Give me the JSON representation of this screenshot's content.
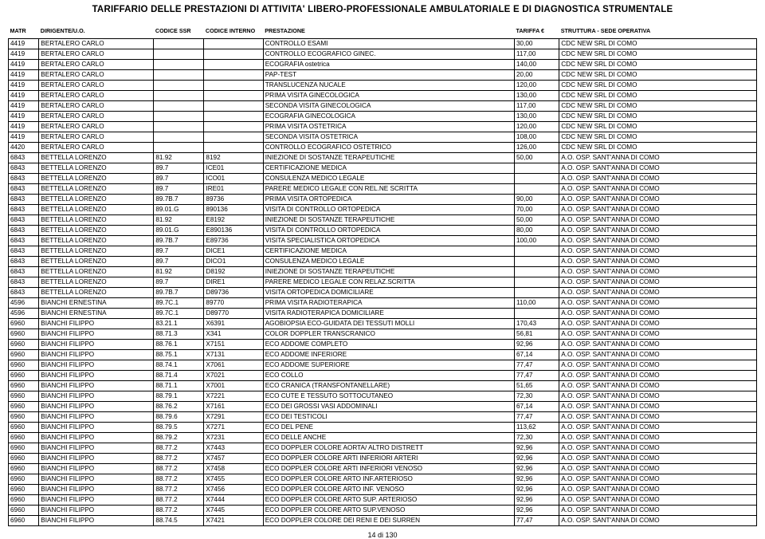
{
  "title": "TARIFFARIO DELLE PRESTAZIONI DI  ATTIVITA' LIBERO-PROFESSIONALE AMBULATORIALE E DI DIAGNOSTICA STRUMENTALE",
  "footer": "14 di 130",
  "columns": [
    "MATR",
    "DIRIGENTE/U.O.",
    "CODICE SSR",
    "CODICE INTERNO",
    "PRESTAZIONE",
    "TARIFFA €",
    "STRUTTURA - SEDE OPERATIVA"
  ],
  "rows": [
    [
      "4419",
      "BERTALERO CARLO",
      "",
      "",
      "CONTROLLO ESAMI",
      "30,00",
      "CDC NEW SRL DI COMO"
    ],
    [
      "4419",
      "BERTALERO CARLO",
      "",
      "",
      "CONTROLLO ECOGRAFICO GINEC.",
      "117,00",
      "CDC NEW SRL DI COMO"
    ],
    [
      "4419",
      "BERTALERO CARLO",
      "",
      "",
      "ECOGRAFIA ostetrica",
      "140,00",
      "CDC NEW SRL DI COMO"
    ],
    [
      "4419",
      "BERTALERO CARLO",
      "",
      "",
      "PAP-TEST",
      "20,00",
      "CDC NEW SRL DI COMO"
    ],
    [
      "4419",
      "BERTALERO CARLO",
      "",
      "",
      "TRANSLUCENZA NUCALE",
      "120,00",
      "CDC NEW SRL DI COMO"
    ],
    [
      "4419",
      "BERTALERO CARLO",
      "",
      "",
      "PRIMA VISITA GINECOLOGICA",
      "130,00",
      "CDC NEW SRL DI COMO"
    ],
    [
      "4419",
      "BERTALERO CARLO",
      "",
      "",
      "SECONDA VISITA GINECOLOGICA",
      "117,00",
      "CDC NEW SRL DI COMO"
    ],
    [
      "4419",
      "BERTALERO CARLO",
      "",
      "",
      "ECOGRAFIA GINECOLOGICA",
      "130,00",
      "CDC NEW SRL DI COMO"
    ],
    [
      "4419",
      "BERTALERO CARLO",
      "",
      "",
      "PRIMA VISITA OSTETRICA",
      "120,00",
      "CDC NEW SRL DI COMO"
    ],
    [
      "4419",
      "BERTALERO CARLO",
      "",
      "",
      "SECONDA VISITA OSTETRICA",
      "108,00",
      "CDC NEW SRL DI COMO"
    ],
    [
      "4420",
      "BERTALERO CARLO",
      "",
      "",
      "CONTROLLO ECOGRAFICO OSTETRICO",
      "126,00",
      "CDC NEW SRL DI COMO"
    ],
    [
      "6843",
      "BETTELLA LORENZO",
      "81.92",
      "8192",
      "INIEZIONE DI SOSTANZE TERAPEUTICHE",
      "50,00",
      "A.O. OSP. SANT'ANNA DI COMO"
    ],
    [
      "6843",
      "BETTELLA LORENZO",
      "89.7",
      "ICE01",
      "CERTIFICAZIONE MEDICA",
      "",
      "A.O. OSP. SANT'ANNA DI COMO"
    ],
    [
      "6843",
      "BETTELLA LORENZO",
      "89.7",
      "ICO01",
      "CONSULENZA MEDICO LEGALE",
      "",
      "A.O. OSP. SANT'ANNA DI COMO"
    ],
    [
      "6843",
      "BETTELLA LORENZO",
      "89.7",
      "IRE01",
      "PARERE MEDICO LEGALE CON REL.NE SCRITTA",
      "",
      "A.O. OSP. SANT'ANNA DI COMO"
    ],
    [
      "6843",
      "BETTELLA LORENZO",
      "89.7B.7",
      "89736",
      "PRIMA VISITA ORTOPEDICA",
      "90,00",
      "A.O. OSP. SANT'ANNA DI COMO"
    ],
    [
      "6843",
      "BETTELLA LORENZO",
      "89.01.G",
      "890136",
      "VISITA DI CONTROLLO ORTOPEDICA",
      "70,00",
      "A.O. OSP. SANT'ANNA DI COMO"
    ],
    [
      "6843",
      "BETTELLA LORENZO",
      "81.92",
      "E8192",
      "INIEZIONE DI SOSTANZE TERAPEUTICHE",
      "50,00",
      "A.O. OSP. SANT'ANNA DI COMO"
    ],
    [
      "6843",
      "BETTELLA LORENZO",
      "89.01.G",
      "E890136",
      "VISITA DI CONTROLLO ORTOPEDICA",
      "80,00",
      "A.O. OSP. SANT'ANNA DI COMO"
    ],
    [
      "6843",
      "BETTELLA LORENZO",
      "89.7B.7",
      "E89736",
      "VISITA SPECIALISTICA ORTOPEDICA",
      "100,00",
      "A.O. OSP. SANT'ANNA DI COMO"
    ],
    [
      "6843",
      "BETTELLA LORENZO",
      "89.7",
      "DICE1",
      "CERTIFICAZIONE MEDICA",
      "",
      "A.O. OSP. SANT'ANNA DI COMO"
    ],
    [
      "6843",
      "BETTELLA LORENZO",
      "89.7",
      "DICO1",
      "CONSULENZA MEDICO LEGALE",
      "",
      "A.O. OSP. SANT'ANNA DI COMO"
    ],
    [
      "6843",
      "BETTELLA LORENZO",
      "81.92",
      "D8192",
      "INIEZIONE DI SOSTANZE TERAPEUTICHE",
      "",
      "A.O. OSP. SANT'ANNA DI COMO"
    ],
    [
      "6843",
      "BETTELLA LORENZO",
      "89.7",
      "DIRE1",
      "PARERE MEDICO LEGALE CON RELAZ.SCRITTA",
      "",
      "A.O. OSP. SANT'ANNA DI COMO"
    ],
    [
      "6843",
      "BETTELLA LORENZO",
      "89.7B.7",
      "D89736",
      "VISITA ORTOPEDICA DOMICILIARE",
      "",
      "A.O. OSP. SANT'ANNA DI COMO"
    ],
    [
      "4596",
      "BIANCHI ERNESTINA",
      "89.7C.1",
      "89770",
      "PRIMA VISITA RADIOTERAPICA",
      "110,00",
      "A.O. OSP. SANT'ANNA DI COMO"
    ],
    [
      "4596",
      "BIANCHI ERNESTINA",
      "89.7C.1",
      "D89770",
      "VISITA RADIOTERAPICA DOMICILIARE",
      "",
      "A.O. OSP. SANT'ANNA DI COMO"
    ],
    [
      "6960",
      "BIANCHI FILIPPO",
      "83.21.1",
      "X6391",
      "AGOBIOPSIA ECO-GUIDATA DEI TESSUTI MOLLI",
      "170,43",
      "A.O. OSP. SANT'ANNA DI COMO"
    ],
    [
      "6960",
      "BIANCHI FILIPPO",
      "88.71.3",
      "X341",
      "COLOR DOPPLER TRANSCRANICO",
      "56,81",
      "A.O. OSP. SANT'ANNA DI COMO"
    ],
    [
      "6960",
      "BIANCHI FILIPPO",
      "88.76.1",
      "X7151",
      "ECO ADDOME COMPLETO",
      "92,96",
      "A.O. OSP. SANT'ANNA DI COMO"
    ],
    [
      "6960",
      "BIANCHI FILIPPO",
      "88.75.1",
      "X7131",
      "ECO ADDOME INFERIORE",
      "67,14",
      "A.O. OSP. SANT'ANNA DI COMO"
    ],
    [
      "6960",
      "BIANCHI FILIPPO",
      "88.74.1",
      "X7061",
      "ECO ADDOME SUPERIORE",
      "77,47",
      "A.O. OSP. SANT'ANNA DI COMO"
    ],
    [
      "6960",
      "BIANCHI FILIPPO",
      "88.71.4",
      "X7021",
      "ECO COLLO",
      "77,47",
      "A.O. OSP. SANT'ANNA DI COMO"
    ],
    [
      "6960",
      "BIANCHI FILIPPO",
      "88.71.1",
      "X7001",
      "ECO CRANICA (TRANSFONTANELLARE)",
      "51,65",
      "A.O. OSP. SANT'ANNA DI COMO"
    ],
    [
      "6960",
      "BIANCHI FILIPPO",
      "88.79.1",
      "X7221",
      "ECO CUTE E TESSUTO SOTTOCUTANEO",
      "72,30",
      "A.O. OSP. SANT'ANNA DI COMO"
    ],
    [
      "6960",
      "BIANCHI FILIPPO",
      "88.76.2",
      "X7161",
      "ECO DEI GROSSI VASI ADDOMINALI",
      "67,14",
      "A.O. OSP. SANT'ANNA DI COMO"
    ],
    [
      "6960",
      "BIANCHI FILIPPO",
      "88.79.6",
      "X7291",
      "ECO DEI TESTICOLI",
      "77,47",
      "A.O. OSP. SANT'ANNA DI COMO"
    ],
    [
      "6960",
      "BIANCHI FILIPPO",
      "88.79.5",
      "X7271",
      "ECO DEL PENE",
      "113,62",
      "A.O. OSP. SANT'ANNA DI COMO"
    ],
    [
      "6960",
      "BIANCHI FILIPPO",
      "88.79.2",
      "X7231",
      "ECO DELLE ANCHE",
      "72,30",
      "A.O. OSP. SANT'ANNA DI COMO"
    ],
    [
      "6960",
      "BIANCHI FILIPPO",
      "88.77.2",
      "X7443",
      "ECO DOPPLER COLORE AORTA/ ALTRO DISTRETT",
      "92,96",
      "A.O. OSP. SANT'ANNA DI COMO"
    ],
    [
      "6960",
      "BIANCHI FILIPPO",
      "88.77.2",
      "X7457",
      "ECO DOPPLER COLORE ARTI INFERIORI ARTERI",
      "92,96",
      "A.O. OSP. SANT'ANNA DI COMO"
    ],
    [
      "6960",
      "BIANCHI FILIPPO",
      "88.77.2",
      "X7458",
      "ECO DOPPLER COLORE ARTI INFERIORI VENOSO",
      "92,96",
      "A.O. OSP. SANT'ANNA DI COMO"
    ],
    [
      "6960",
      "BIANCHI FILIPPO",
      "88.77.2",
      "X7455",
      "ECO DOPPLER COLORE ARTO INF.ARTERIOSO",
      "92,96",
      "A.O. OSP. SANT'ANNA DI COMO"
    ],
    [
      "6960",
      "BIANCHI FILIPPO",
      "88.77.2",
      "X7456",
      "ECO DOPPLER COLORE ARTO INF. VENOSO",
      "92,96",
      "A.O. OSP. SANT'ANNA DI COMO"
    ],
    [
      "6960",
      "BIANCHI FILIPPO",
      "88.77.2",
      "X7444",
      "ECO DOPPLER COLORE ARTO SUP. ARTERIOSO",
      "92,96",
      "A.O. OSP. SANT'ANNA DI COMO"
    ],
    [
      "6960",
      "BIANCHI FILIPPO",
      "88.77.2",
      "X7445",
      "ECO DOPPLER COLORE ARTO SUP.VENOSO",
      "92,96",
      "A.O. OSP. SANT'ANNA DI COMO"
    ],
    [
      "6960",
      "BIANCHI FILIPPO",
      "88.74.5",
      "X7421",
      "ECO DOPPLER COLORE DEI RENI E DEI SURREN",
      "77,47",
      "A.O. OSP. SANT'ANNA DI COMO"
    ]
  ]
}
